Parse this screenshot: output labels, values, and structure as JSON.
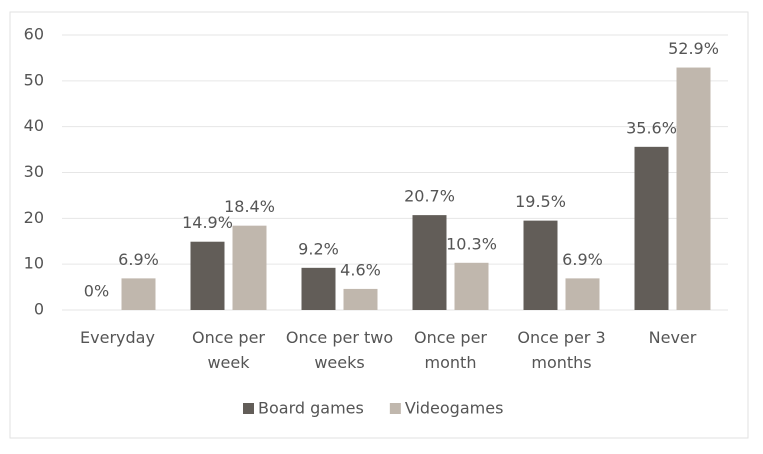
{
  "chart_data": {
    "type": "bar",
    "categories": [
      "Everyday",
      "Once per week",
      "Once per two weeks",
      "Once per month",
      "Once per 3 months",
      "Never"
    ],
    "series": [
      {
        "name": "Board games",
        "color": "#625d58",
        "values": [
          0,
          14.9,
          9.2,
          20.7,
          19.5,
          35.6
        ],
        "value_labels": [
          "0%",
          "14.9%",
          "9.2%",
          "20.7%",
          "19.5%",
          "35.6%"
        ]
      },
      {
        "name": "Videogames",
        "color": "#c0b7ad",
        "values": [
          6.9,
          18.4,
          4.6,
          10.3,
          6.9,
          52.9
        ],
        "value_labels": [
          "6.9%",
          "18.4%",
          "4.6%",
          "10.3%",
          "6.9%",
          "52.9%"
        ]
      }
    ],
    "ylim": [
      0,
      60
    ],
    "yticks": [
      0,
      10,
      20,
      30,
      40,
      50,
      60
    ],
    "grid": true,
    "legend": "bottom"
  }
}
